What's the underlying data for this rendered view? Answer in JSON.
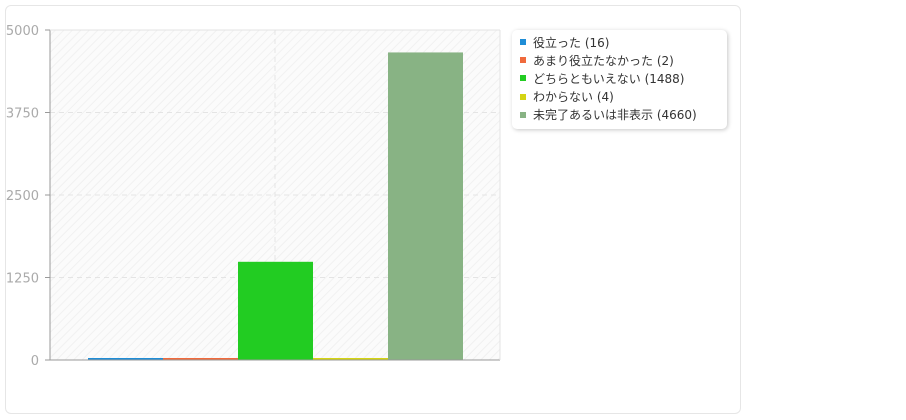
{
  "chart_data": {
    "type": "bar",
    "categories": [
      "役立った (16)",
      "あまり役立たなかった (2)",
      "どちらともいえない (1488)",
      "わからない (4)",
      "未完了あるいは非表示 (4660)"
    ],
    "values": [
      16,
      2,
      1488,
      4,
      4660
    ],
    "colors": [
      "#1f8dd6",
      "#f06a3c",
      "#22cc22",
      "#d4d414",
      "#88b384"
    ],
    "yticks": [
      "0",
      "1250",
      "2500",
      "3750",
      "5000"
    ],
    "ylim": [
      0,
      5000
    ],
    "grid": true,
    "legend_position": "right"
  }
}
